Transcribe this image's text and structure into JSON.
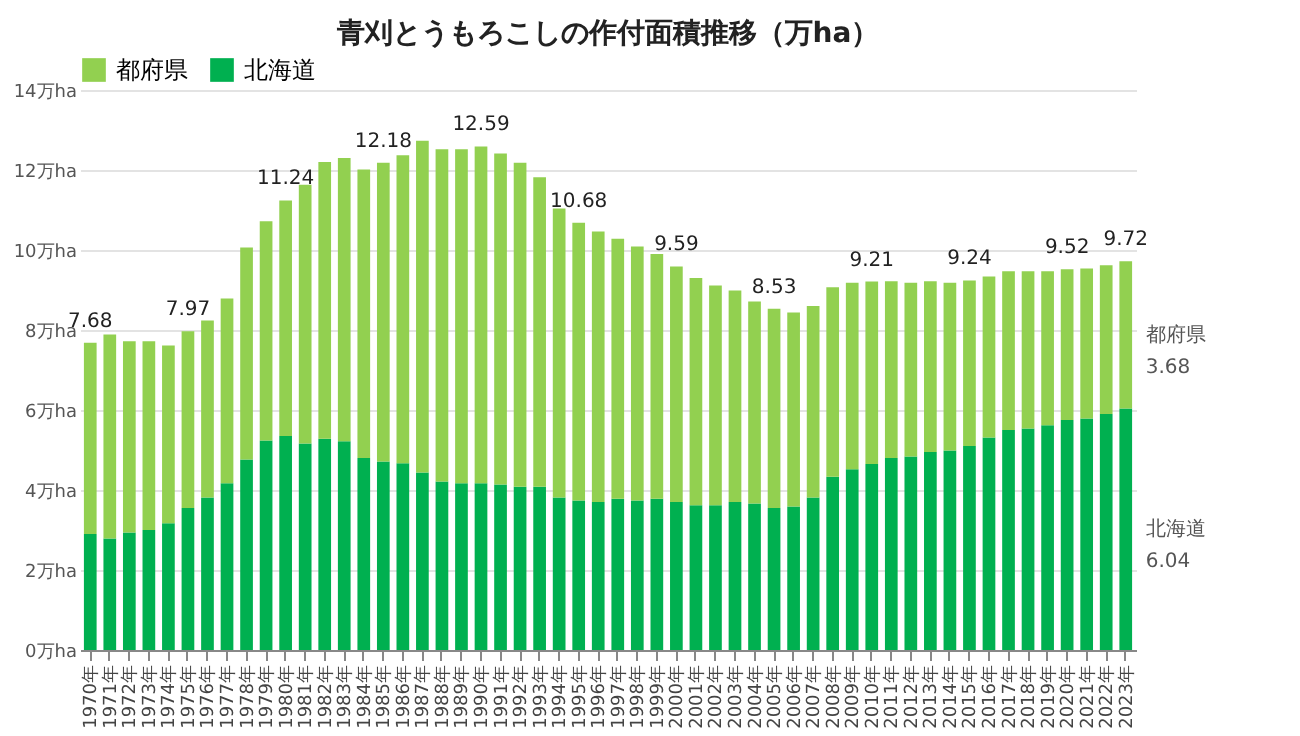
{
  "chart_data": {
    "type": "bar",
    "title": "青刈とうもろこしの作付面積推移（万ha）",
    "stacked": true,
    "legend": "top",
    "grid": "y",
    "categories": [
      "1970年",
      "1971年",
      "1972年",
      "1973年",
      "1974年",
      "1975年",
      "1976年",
      "1977年",
      "1978年",
      "1979年",
      "1980年",
      "1981年",
      "1982年",
      "1983年",
      "1984年",
      "1985年",
      "1986年",
      "1987年",
      "1988年",
      "1989年",
      "1990年",
      "1991年",
      "1992年",
      "1993年",
      "1994年",
      "1995年",
      "1996年",
      "1997年",
      "1998年",
      "1999年",
      "2000年",
      "2001年",
      "2002年",
      "2003年",
      "2004年",
      "2005年",
      "2006年",
      "2007年",
      "2008年",
      "2009年",
      "2010年",
      "2011年",
      "2012年",
      "2013年",
      "2014年",
      "2015年",
      "2016年",
      "2017年",
      "2018年",
      "2019年",
      "2020年",
      "2021年",
      "2022年",
      "2023年"
    ],
    "series": [
      {
        "name": "北海道",
        "color": "#00b050",
        "values": [
          2.9,
          2.79,
          2.94,
          3.0,
          3.17,
          3.55,
          3.81,
          4.17,
          4.76,
          5.24,
          5.35,
          5.16,
          5.28,
          5.22,
          4.8,
          4.71,
          4.67,
          4.44,
          4.21,
          4.17,
          4.17,
          4.14,
          4.08,
          4.08,
          3.81,
          3.74,
          3.7,
          3.78,
          3.74,
          3.78,
          3.7,
          3.62,
          3.62,
          3.7,
          3.66,
          3.55,
          3.59,
          3.81,
          4.33,
          4.52,
          4.65,
          4.8,
          4.84,
          4.95,
          4.99,
          5.1,
          5.31,
          5.5,
          5.54,
          5.62,
          5.75,
          5.79,
          5.9,
          6.04
        ]
      },
      {
        "name": "都府県",
        "color": "#92d050",
        "values": [
          4.78,
          5.1,
          4.78,
          4.72,
          4.44,
          4.42,
          4.43,
          4.62,
          5.3,
          5.48,
          5.89,
          6.47,
          6.92,
          7.08,
          7.21,
          7.47,
          7.7,
          8.29,
          8.31,
          8.35,
          8.42,
          8.27,
          8.1,
          7.74,
          7.23,
          6.94,
          6.76,
          6.5,
          6.35,
          6.12,
          5.89,
          5.68,
          5.49,
          5.29,
          5.05,
          4.98,
          4.85,
          4.79,
          4.74,
          4.66,
          4.56,
          4.42,
          4.34,
          4.27,
          4.19,
          4.14,
          4.03,
          3.97,
          3.93,
          3.85,
          3.77,
          3.75,
          3.72,
          3.68
        ]
      }
    ],
    "totals": [
      "7.68",
      null,
      null,
      null,
      null,
      "7.97",
      null,
      null,
      null,
      null,
      "11.24",
      null,
      null,
      null,
      null,
      "12.18",
      null,
      null,
      null,
      null,
      "12.59",
      null,
      null,
      null,
      null,
      "10.68",
      null,
      null,
      null,
      null,
      "9.59",
      null,
      null,
      null,
      null,
      "8.53",
      null,
      null,
      null,
      null,
      "9.21",
      null,
      null,
      null,
      null,
      "9.24",
      null,
      null,
      null,
      null,
      "9.52",
      null,
      null,
      "9.72"
    ],
    "ylim": [
      0,
      14
    ],
    "yticks": [
      {
        "value": 0,
        "label": "0万ha"
      },
      {
        "value": 2,
        "label": "2万ha"
      },
      {
        "value": 4,
        "label": "4万ha"
      },
      {
        "value": 6,
        "label": "6万ha"
      },
      {
        "value": 8,
        "label": "8万ha"
      },
      {
        "value": 10,
        "label": "10万ha"
      },
      {
        "value": 12,
        "label": "12万ha"
      },
      {
        "value": 14,
        "label": "14万ha"
      }
    ],
    "annotations": [
      {
        "text": "都府県\n3.68",
        "x": "2023年",
        "y": 7.88
      },
      {
        "text": "北海道\n6.04",
        "x": "2023年",
        "y": 3.02
      }
    ]
  }
}
